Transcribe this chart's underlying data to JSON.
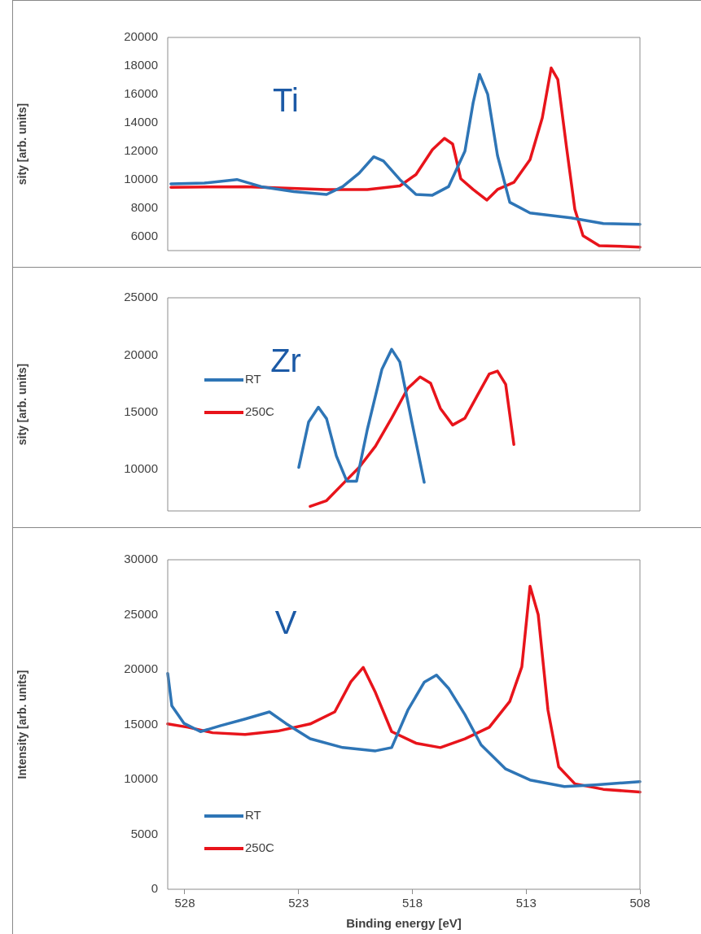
{
  "chart_data": [
    {
      "type": "line",
      "title": "Ti",
      "ylabel": "sity [arb. units]",
      "xlim": [
        528.75,
        508
      ],
      "ylim": [
        5000,
        20000
      ],
      "yticks": [
        6000,
        8000,
        10000,
        12000,
        14000,
        16000,
        18000,
        20000
      ],
      "tick_labels": "y",
      "grid": false,
      "legend": false,
      "series": [
        {
          "color": "#2e75b6",
          "x": [
            528.61,
            527.14,
            525.71,
            524.64,
            523.21,
            521.77,
            521.06,
            520.34,
            519.7,
            519.27,
            518.55,
            517.84,
            517.12,
            516.41,
            515.69,
            515.33,
            515.05,
            514.69,
            514.26,
            513.72,
            512.83,
            511.04,
            509.61,
            508.0
          ],
          "values": [
            9700,
            9750,
            10000,
            9500,
            9150,
            8950,
            9500,
            10450,
            11600,
            11300,
            10000,
            8950,
            8900,
            9500,
            12000,
            15400,
            17400,
            16000,
            11700,
            8400,
            7650,
            7300,
            6900,
            6850
          ]
        },
        {
          "color": "#e8141b",
          "x": [
            528.61,
            525.35,
            523.56,
            521.77,
            519.98,
            518.55,
            517.84,
            517.12,
            516.59,
            516.23,
            515.87,
            515.33,
            514.73,
            514.26,
            513.54,
            512.83,
            512.29,
            511.9,
            511.61,
            511.22,
            510.86,
            510.5,
            509.79,
            508.0
          ],
          "values": [
            9450,
            9500,
            9400,
            9300,
            9300,
            9550,
            10350,
            12100,
            12900,
            12500,
            10050,
            9300,
            8550,
            9300,
            9800,
            11400,
            14350,
            17850,
            17050,
            12200,
            7900,
            6050,
            5350,
            5250
          ]
        }
      ]
    },
    {
      "type": "line",
      "title": "Zr",
      "ylabel": "sity [arb. units]",
      "xlim": [
        528.75,
        508
      ],
      "ylim": [
        6400,
        25000
      ],
      "yticks": [
        10000,
        15000,
        20000,
        25000
      ],
      "tick_labels": "y",
      "grid": false,
      "legend": "left",
      "series": [
        {
          "name": "RT",
          "color": "#2e75b6",
          "x": [
            522.99,
            522.56,
            522.13,
            521.77,
            521.34,
            520.88,
            520.45,
            519.98,
            519.34,
            518.91,
            518.55,
            518.02,
            517.48
          ],
          "values": [
            10200,
            14150,
            15450,
            14450,
            11200,
            9000,
            9000,
            13500,
            18750,
            20500,
            19400,
            14150,
            8900
          ]
        },
        {
          "name": "250C",
          "color": "#e8141b",
          "x": [
            522.49,
            521.77,
            521.06,
            520.34,
            519.62,
            518.91,
            518.2,
            517.66,
            517.2,
            516.77,
            516.23,
            515.69,
            515.15,
            514.62,
            514.26,
            513.9,
            513.54
          ],
          "values": [
            6800,
            7300,
            8750,
            10200,
            12050,
            14500,
            17100,
            18100,
            17550,
            15350,
            13900,
            14500,
            16450,
            18350,
            18600,
            17450,
            12200
          ]
        }
      ]
    },
    {
      "type": "line",
      "title": "V",
      "xlabel": "Binding energy [eV]",
      "ylabel": "Intensity [arb. units]",
      "xlim": [
        528.75,
        508
      ],
      "xticks": [
        528,
        523,
        518,
        513,
        508
      ],
      "ylim": [
        0,
        30000
      ],
      "yticks": [
        0,
        5000,
        10000,
        15000,
        20000,
        25000,
        30000
      ],
      "grid": false,
      "legend": "bottom left",
      "series": [
        {
          "name": "RT",
          "color": "#2e75b6",
          "x": [
            528.75,
            528.57,
            528.03,
            527.31,
            526.42,
            525.35,
            524.28,
            523.56,
            522.49,
            521.06,
            519.62,
            518.91,
            518.2,
            517.48,
            516.94,
            516.41,
            515.69,
            514.98,
            513.9,
            512.83,
            511.32,
            509.97,
            508.0
          ],
          "values": [
            19650,
            16700,
            15100,
            14350,
            14900,
            15500,
            16150,
            15100,
            13700,
            12900,
            12600,
            12900,
            16300,
            18850,
            19500,
            18300,
            15900,
            13150,
            10950,
            9950,
            9350,
            9500,
            9800
          ]
        },
        {
          "name": "250C",
          "color": "#e8141b",
          "x": [
            528.75,
            527.86,
            526.78,
            525.35,
            523.92,
            522.49,
            521.41,
            520.7,
            520.16,
            519.62,
            518.91,
            517.84,
            516.77,
            515.69,
            514.62,
            513.72,
            513.19,
            512.83,
            512.47,
            512.04,
            511.57,
            510.86,
            509.61,
            508.0
          ],
          "values": [
            15050,
            14750,
            14250,
            14100,
            14400,
            15050,
            16150,
            18900,
            20200,
            17900,
            14350,
            13300,
            12900,
            13700,
            14750,
            17100,
            20250,
            27600,
            25000,
            16300,
            11150,
            9600,
            9100,
            8850
          ]
        }
      ]
    }
  ]
}
